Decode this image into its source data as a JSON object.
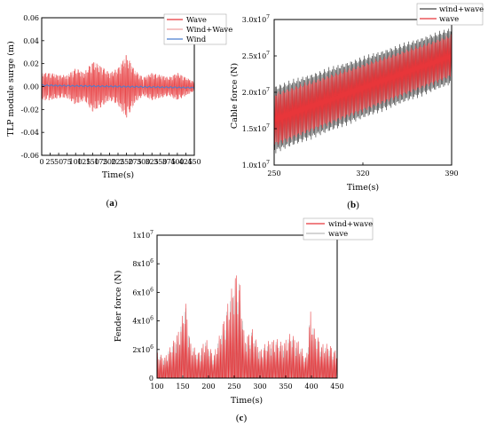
{
  "colors": {
    "red": "#e8363a",
    "pink": "#f0a0a0",
    "gray": "#444444",
    "blue": "#4a7fd0"
  },
  "chart_data": [
    {
      "id": "a",
      "type": "line",
      "caption": "a",
      "xlabel": "Time(s)",
      "ylabel": "TLP module surge (m)",
      "xlim": [
        0,
        450
      ],
      "ylim": [
        -0.06,
        0.06
      ],
      "xticks": [
        "0",
        "25",
        "50",
        "75",
        "100",
        "125",
        "150",
        "175",
        "200",
        "225",
        "250",
        "275",
        "300",
        "325",
        "350",
        "375",
        "400",
        "425",
        "450"
      ],
      "yticks": [
        "0.06",
        "0.04",
        "0.02",
        "0.00",
        "-0.02",
        "-0.04",
        "-0.06"
      ],
      "legend": [
        "Wave",
        "Wind+Wave",
        "Wind"
      ],
      "legend_position": "top-right",
      "series": [
        {
          "name": "Wave",
          "x": [
            0,
            25,
            50,
            75,
            100,
            125,
            150,
            175,
            200,
            225,
            250,
            275,
            300,
            325,
            350,
            375,
            400,
            425,
            450
          ],
          "envelope": [
            0.012,
            0.012,
            0.01,
            0.01,
            0.016,
            0.012,
            0.022,
            0.018,
            0.012,
            0.016,
            0.028,
            0.014,
            0.008,
            0.012,
            0.01,
            0.008,
            0.012,
            0.008,
            0.004
          ]
        },
        {
          "name": "Wind+Wave",
          "x": [
            0,
            25,
            50,
            75,
            100,
            125,
            150,
            175,
            200,
            225,
            250,
            275,
            300,
            325,
            350,
            375,
            400,
            425,
            450
          ],
          "envelope": [
            0.012,
            0.012,
            0.01,
            0.01,
            0.016,
            0.012,
            0.022,
            0.018,
            0.012,
            0.016,
            0.028,
            0.014,
            0.008,
            0.012,
            0.01,
            0.008,
            0.012,
            0.008,
            0.004
          ]
        },
        {
          "name": "Wind",
          "x": [
            0,
            450
          ],
          "values": [
            0.001,
            -0.001
          ]
        }
      ]
    },
    {
      "id": "b",
      "type": "area",
      "caption": "b",
      "xlabel": "Time(s)",
      "ylabel": "Cable force (N)",
      "xlim": [
        250,
        390
      ],
      "ylim": [
        10000000.0,
        30000000.0
      ],
      "xticks": [
        "250",
        "320",
        "390"
      ],
      "yticks": [
        {
          "mantissa": "3.0x10",
          "exp": "7"
        },
        {
          "mantissa": "2.5x10",
          "exp": "7"
        },
        {
          "mantissa": "2.0x10",
          "exp": "7"
        },
        {
          "mantissa": "1.5x10",
          "exp": "7"
        },
        {
          "mantissa": "1.0x10",
          "exp": "7"
        }
      ],
      "legend": [
        "wind+wave",
        "wave"
      ],
      "legend_position": "top-right",
      "series": [
        {
          "name": "wind+wave",
          "x": [
            250,
            390
          ],
          "lower": [
            11500000.0,
            21000000.0
          ],
          "upper": [
            21000000.0,
            29000000.0
          ]
        },
        {
          "name": "wave",
          "x": [
            250,
            390
          ],
          "lower": [
            12500000.0,
            22000000.0
          ],
          "upper": [
            20000000.0,
            28000000.0
          ]
        }
      ]
    },
    {
      "id": "c",
      "type": "line",
      "caption": "c",
      "xlabel": "Time(s)",
      "ylabel": "Fender force (N)",
      "xlim": [
        100,
        450
      ],
      "ylim": [
        0,
        10000000.0
      ],
      "xticks": [
        "100",
        "150",
        "200",
        "250",
        "300",
        "350",
        "400",
        "450"
      ],
      "yticks": [
        {
          "mantissa": "1x10",
          "exp": "7"
        },
        {
          "mantissa": "8x10",
          "exp": "6"
        },
        {
          "mantissa": "6x10",
          "exp": "6"
        },
        {
          "mantissa": "4x10",
          "exp": "6"
        },
        {
          "mantissa": "2x10",
          "exp": "6"
        },
        {
          "mantissa": "0",
          "exp": ""
        }
      ],
      "legend": [
        "wind+wave",
        "wave"
      ],
      "legend_position": "top-right",
      "series": [
        {
          "name": "wind+wave",
          "x": [
            100,
            115,
            130,
            145,
            155,
            165,
            180,
            195,
            210,
            225,
            240,
            255,
            262,
            270,
            285,
            300,
            315,
            330,
            345,
            360,
            375,
            390,
            398,
            405,
            420,
            435,
            450
          ],
          "values": [
            1800000.0,
            1500000.0,
            2500000.0,
            3600000.0,
            5600000.0,
            2500000.0,
            1800000.0,
            2800000.0,
            1600000.0,
            3500000.0,
            5600000.0,
            7700000.0,
            6500000.0,
            2800000.0,
            3500000.0,
            2000000.0,
            2600000.0,
            2800000.0,
            2500000.0,
            3200000.0,
            2600000.0,
            1400000.0,
            4800000.0,
            3500000.0,
            2400000.0,
            2400000.0,
            1800000.0
          ]
        },
        {
          "name": "wave",
          "x": [
            100,
            115,
            130,
            145,
            155,
            165,
            180,
            195,
            210,
            225,
            240,
            255,
            262,
            270,
            285,
            300,
            315,
            330,
            345,
            360,
            375,
            390,
            398,
            405,
            420,
            435,
            450
          ],
          "values": [
            1700000.0,
            1400000.0,
            2400000.0,
            3400000.0,
            5300000.0,
            2400000.0,
            1700000.0,
            2600000.0,
            1500000.0,
            3300000.0,
            5300000.0,
            7300000.0,
            6200000.0,
            2600000.0,
            3300000.0,
            1900000.0,
            2400000.0,
            2600000.0,
            2300000.0,
            3000000.0,
            2400000.0,
            1300000.0,
            4500000.0,
            3300000.0,
            2200000.0,
            2200000.0,
            1700000.0
          ]
        }
      ]
    }
  ]
}
